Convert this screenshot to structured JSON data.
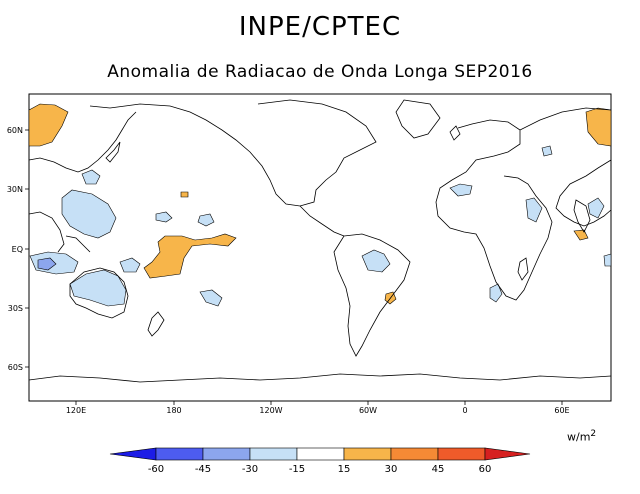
{
  "header": {
    "title": "INPE/CPTEC",
    "subtitle": "Anomalia de Radiacao de Onda Longa SEP2016"
  },
  "axes": {
    "lon_labels": [
      "120E",
      "180",
      "120W",
      "60W",
      "0",
      "60E"
    ],
    "lat_labels": [
      "60N",
      "30N",
      "EQ",
      "30S",
      "60S"
    ]
  },
  "colorbar": {
    "unit": "w/m",
    "unit_exp": "2",
    "tick_labels": [
      "-60",
      "-45",
      "-30",
      "-15",
      "15",
      "30",
      "45",
      "60"
    ],
    "colors": [
      "#1c1ce6",
      "#4d5cf0",
      "#8ca6ee",
      "#c6e0f6",
      "#ffffff",
      "#f7b54a",
      "#f58a35",
      "#ef5b2a",
      "#d62020"
    ]
  },
  "anomaly_colors": {
    "negative_light": "#c6e0f6",
    "negative_medium": "#8ca6ee",
    "positive_light": "#f7b54a"
  }
}
